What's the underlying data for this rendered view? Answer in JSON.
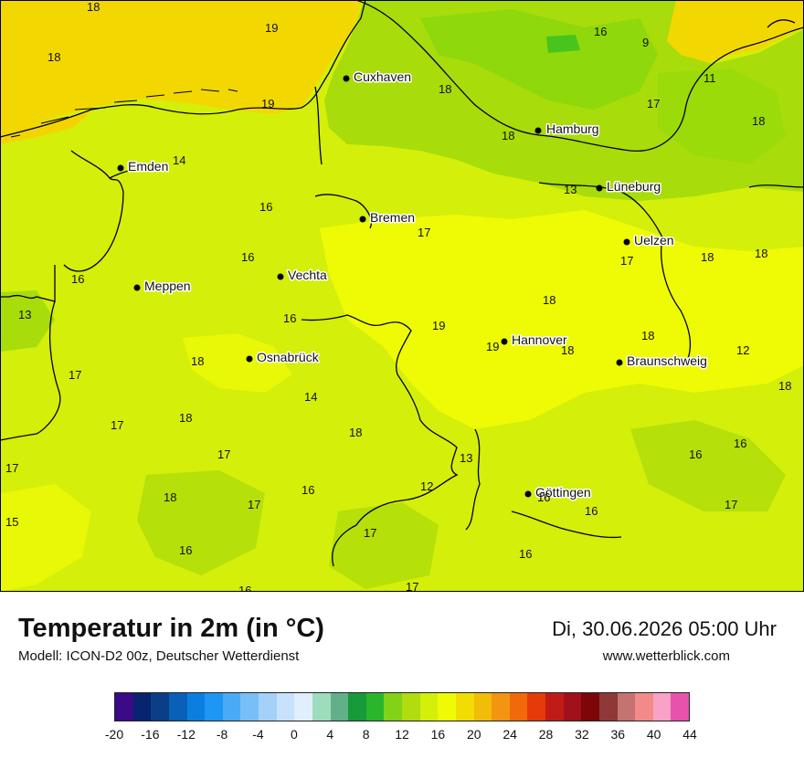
{
  "header": {
    "title": "Temperatur in 2m (in °C)",
    "model": "Modell: ICON-D2 00z, Deutscher Wetterdienst",
    "valid": "Di, 30.06.2026 05:00 Uhr",
    "site": "www.wetterblick.com"
  },
  "cities": [
    {
      "id": "cuxhaven",
      "name": "Cuxhaven"
    },
    {
      "id": "hamburg",
      "name": "Hamburg"
    },
    {
      "id": "emden",
      "name": "Emden"
    },
    {
      "id": "lueneburg",
      "name": "Lüneburg"
    },
    {
      "id": "bremen",
      "name": "Bremen"
    },
    {
      "id": "uelzen",
      "name": "Uelzen"
    },
    {
      "id": "vechta",
      "name": "Vechta"
    },
    {
      "id": "meppen",
      "name": "Meppen"
    },
    {
      "id": "hannover",
      "name": "Hannover"
    },
    {
      "id": "osnabrueck",
      "name": "Osnabrück"
    },
    {
      "id": "braunschweig",
      "name": "Braunschweig"
    },
    {
      "id": "goettingen",
      "name": "Göttingen"
    }
  ],
  "values": [
    "18",
    "19",
    "18",
    "16",
    "9",
    "11",
    "17",
    "18",
    "19",
    "18",
    "18",
    "14",
    "13",
    "16",
    "16",
    "17",
    "17",
    "18",
    "16",
    "16",
    "18",
    "13",
    "19",
    "19",
    "18",
    "18",
    "18",
    "12",
    "17",
    "18",
    "14",
    "18",
    "17",
    "18",
    "18",
    "17",
    "17",
    "16",
    "13",
    "12",
    "16",
    "16",
    "15",
    "18",
    "17",
    "16",
    "17",
    "16",
    "17",
    "16",
    "16",
    "17"
  ],
  "colorbar": {
    "colors": [
      "#3b0a86",
      "#07246e",
      "#0a3f87",
      "#0a5fb6",
      "#0a7fe0",
      "#1e96f3",
      "#4aaaf5",
      "#78bff7",
      "#a3d1f8",
      "#c7e2fa",
      "#e1eefc",
      "#9edcbe",
      "#62b089",
      "#169a3a",
      "#2ab62c",
      "#82d218",
      "#b0dc10",
      "#d3ef0a",
      "#eefb04",
      "#f3dc04",
      "#f2bd08",
      "#f39412",
      "#f06a0c",
      "#e63a0a",
      "#c01c16",
      "#a1101c",
      "#7c0608",
      "#8f3838",
      "#c57272",
      "#f38a8a",
      "#f7a2c6",
      "#e652ac"
    ],
    "ticks": [
      "-20",
      "-16",
      "-12",
      "-8",
      "-4",
      "0",
      "4",
      "8",
      "12",
      "16",
      "20",
      "24",
      "28",
      "32",
      "36",
      "40",
      "44"
    ]
  },
  "colors": {
    "sea_warm": "#f2d800",
    "land_main": "#d3ef0a",
    "land_warm": "#eefb04",
    "land_cool": "#a8dc0a",
    "land_cooler": "#8ed80c"
  }
}
